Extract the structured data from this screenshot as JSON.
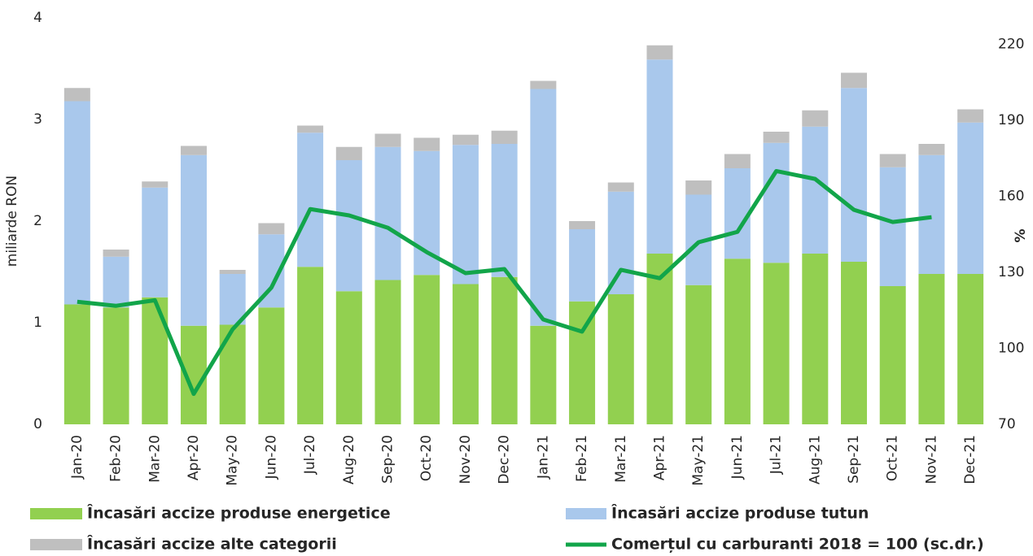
{
  "chart_data": {
    "type": "bar",
    "categories": [
      "Jan-20",
      "Feb-20",
      "Mar-20",
      "Apr-20",
      "May-20",
      "Jun-20",
      "Jul-20",
      "Aug-20",
      "Sep-20",
      "Oct-20",
      "Nov-20",
      "Dec-20",
      "Jan-21",
      "Feb-21",
      "Mar-21",
      "Apr-21",
      "May-21",
      "Jun-21",
      "Jul-21",
      "Aug-21",
      "Sep-21",
      "Oct-21",
      "Nov-21",
      "Dec-21"
    ],
    "ylabel": "miliarde RON",
    "y2label": "%",
    "ylim": [
      0,
      4
    ],
    "yticks": [
      0,
      1,
      2,
      3,
      4
    ],
    "y2lim": [
      70,
      230.5
    ],
    "y2ticks": [
      70,
      100,
      130,
      160,
      190,
      220
    ],
    "stacked": true,
    "grid": false,
    "series": [
      {
        "name": "Încasări accize produse energetice",
        "color": "#92d050",
        "values": [
          1.18,
          1.15,
          1.25,
          0.97,
          0.98,
          1.15,
          1.55,
          1.31,
          1.42,
          1.47,
          1.38,
          1.45,
          0.97,
          1.21,
          1.28,
          1.68,
          1.37,
          1.63,
          1.59,
          1.68,
          1.6,
          1.36,
          1.48,
          1.48
        ]
      },
      {
        "name": "Încasări accize produse tutun",
        "color": "#a9c8ec",
        "values": [
          2.0,
          0.5,
          1.08,
          1.68,
          0.5,
          0.72,
          1.32,
          1.29,
          1.31,
          1.22,
          1.37,
          1.31,
          2.33,
          0.71,
          1.01,
          1.91,
          0.89,
          0.89,
          1.18,
          1.25,
          1.71,
          1.17,
          1.17,
          1.49
        ]
      },
      {
        "name": "Încasări accize alte categorii",
        "color": "#bfbfbf",
        "values": [
          0.13,
          0.07,
          0.06,
          0.09,
          0.04,
          0.11,
          0.07,
          0.13,
          0.13,
          0.13,
          0.1,
          0.13,
          0.08,
          0.08,
          0.09,
          0.14,
          0.14,
          0.14,
          0.11,
          0.16,
          0.15,
          0.13,
          0.11,
          0.13
        ]
      },
      {
        "name": "Comerțul cu carburanti 2018 = 100 (sc.dr.)",
        "color": "#12a54a",
        "type": "line",
        "axis": "y2",
        "values": [
          118.4,
          116.8,
          119,
          82,
          107.5,
          124,
          155,
          152.5,
          147.6,
          138,
          129.7,
          131.3,
          111.4,
          106.6,
          131,
          127.7,
          141.9,
          146,
          170,
          166.9,
          154.7,
          149.9,
          151.8,
          null
        ]
      }
    ]
  }
}
